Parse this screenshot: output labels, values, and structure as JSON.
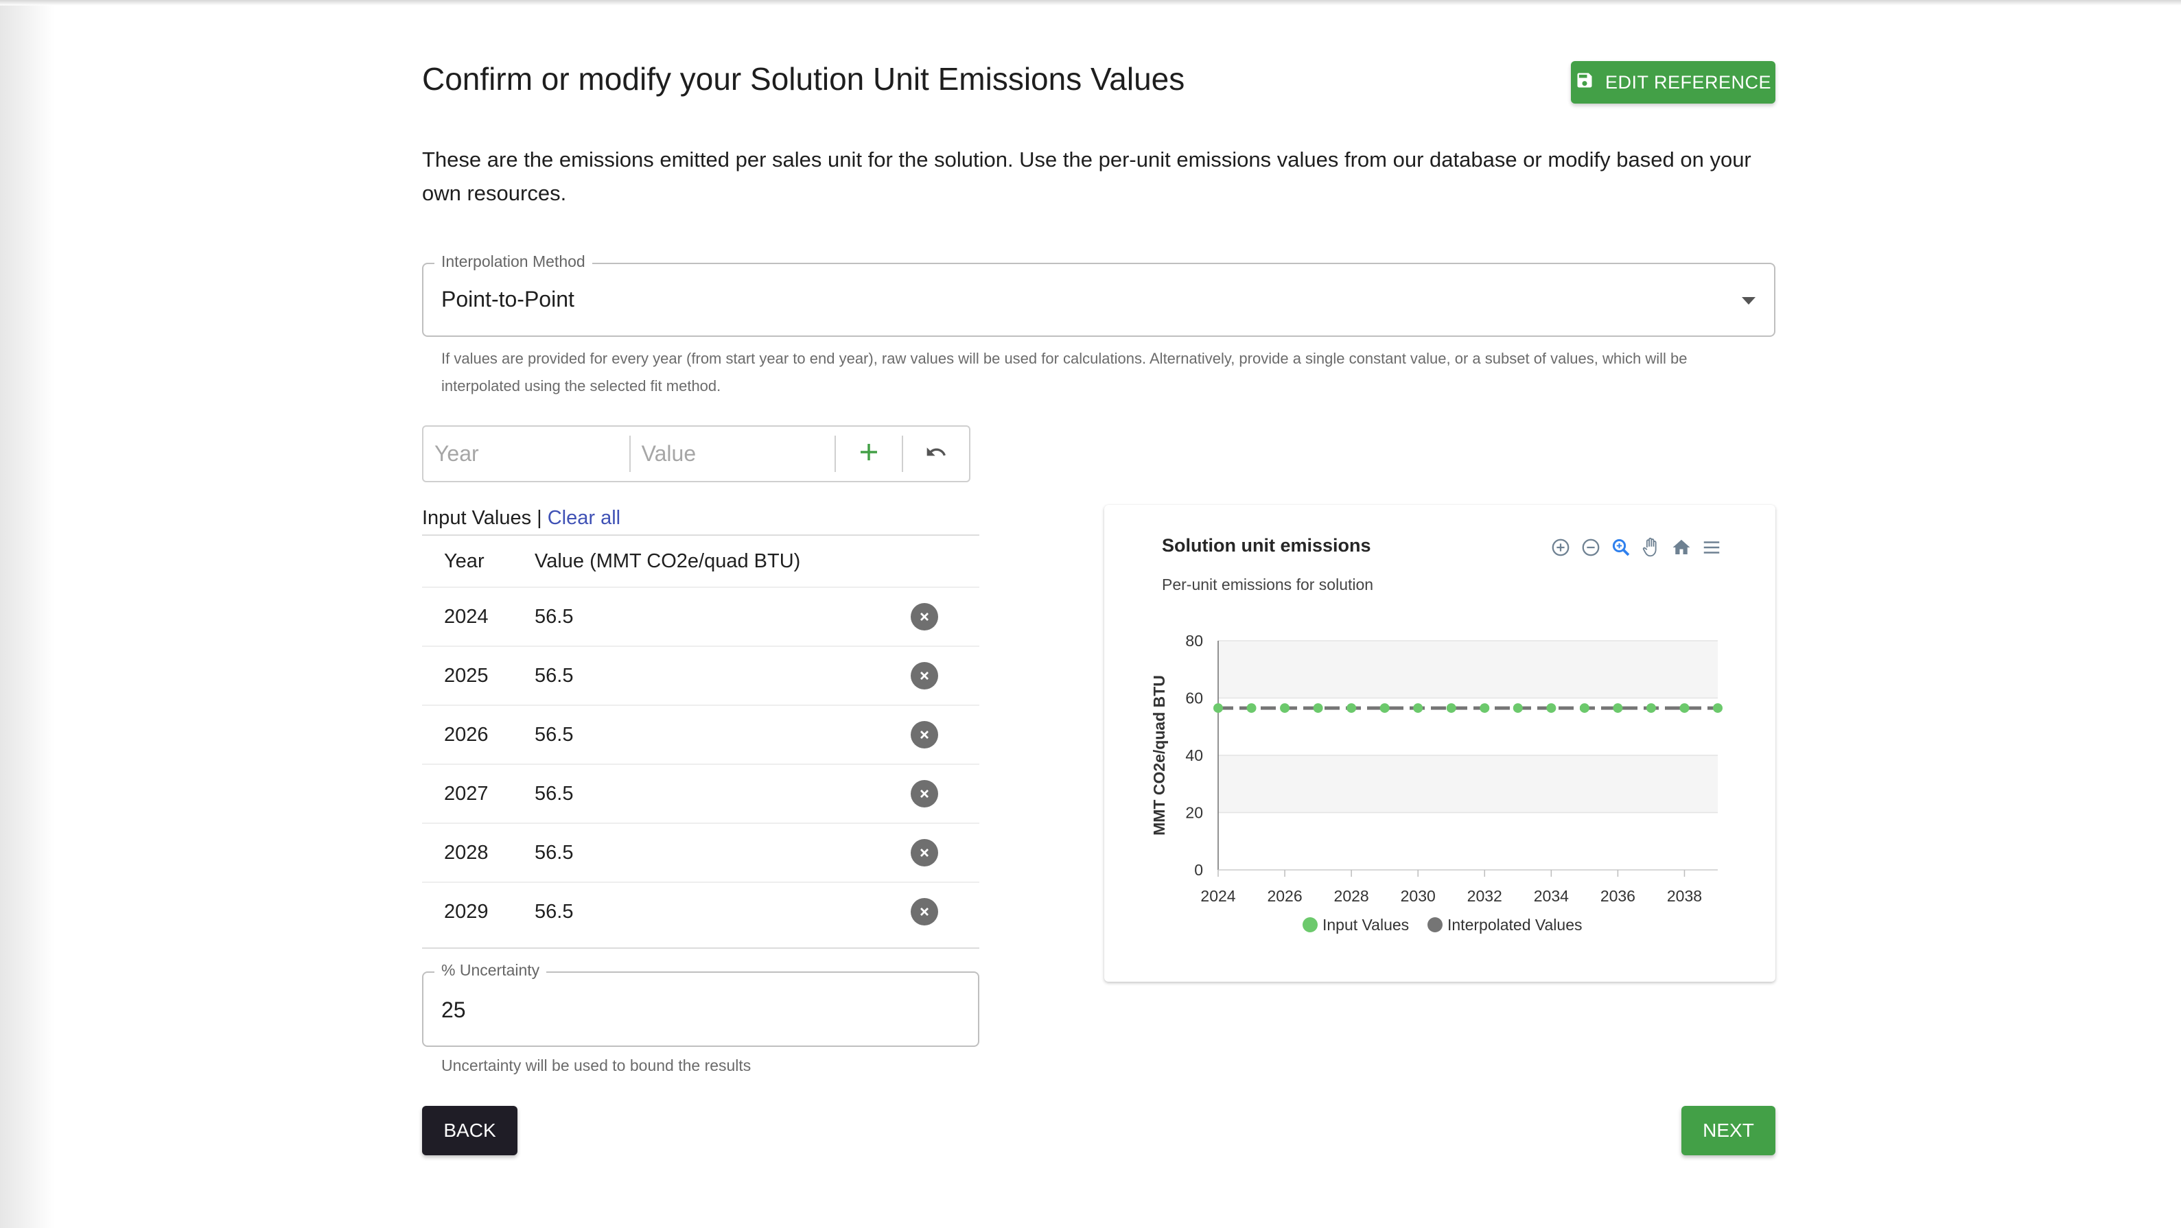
{
  "header": {
    "title": "Confirm or modify your Solution Unit Emissions Values",
    "edit_reference_label": "EDIT REFERENCE",
    "description": "These are the emissions emitted per sales unit for the solution. Use the per-unit emissions values from our database or modify based on your own resources."
  },
  "interpolation": {
    "label": "Interpolation Method",
    "value": "Point-to-Point",
    "helper": "If values are provided for every year (from start year to end year), raw values will be used for calculations. Alternatively, provide a single constant value, or a subset of values, which will be interpolated using the selected fit method."
  },
  "entry": {
    "year_placeholder": "Year",
    "value_placeholder": "Value"
  },
  "input_values": {
    "heading": "Input Values",
    "separator": " | ",
    "clear_all": "Clear all",
    "col_year": "Year",
    "col_value": "Value (MMT CO2e/quad BTU)",
    "rows": [
      {
        "year": "2024",
        "value": "56.5"
      },
      {
        "year": "2025",
        "value": "56.5"
      },
      {
        "year": "2026",
        "value": "56.5"
      },
      {
        "year": "2027",
        "value": "56.5"
      },
      {
        "year": "2028",
        "value": "56.5"
      },
      {
        "year": "2029",
        "value": "56.5"
      }
    ]
  },
  "uncertainty": {
    "label": "% Uncertainty",
    "value": "25",
    "helper": "Uncertainty will be used to bound the results"
  },
  "nav": {
    "back": "BACK",
    "next": "NEXT"
  },
  "colors": {
    "green": "#43a047",
    "dark": "#1f1d26",
    "link": "#3f51b5",
    "input_series": "#6cc96c",
    "interpolated_series": "#757575"
  },
  "toolbar_icons": [
    "zoom-in-icon",
    "zoom-out-icon",
    "zoom-selection-icon",
    "pan-hand-icon",
    "home-icon",
    "menu-icon"
  ],
  "chart_data": {
    "type": "line",
    "title": "Solution unit emissions",
    "subtitle": "Per-unit emissions for solution",
    "ylabel": "MMT CO2e/quad BTU",
    "xlabel": "",
    "ylim": [
      0,
      80
    ],
    "yticks": [
      0,
      20,
      40,
      60,
      80
    ],
    "xlim": [
      2024,
      2039
    ],
    "xticks": [
      2024,
      2026,
      2028,
      2030,
      2032,
      2034,
      2036,
      2038
    ],
    "grid": "horizontal bands",
    "legend_position": "bottom-center",
    "series": [
      {
        "name": "Input Values",
        "color": "#6cc96c",
        "style": "markers",
        "x": [
          2024,
          2025,
          2026,
          2027,
          2028,
          2029,
          2030,
          2031,
          2032,
          2033,
          2034,
          2035,
          2036,
          2037,
          2038,
          2039
        ],
        "y": [
          56.5,
          56.5,
          56.5,
          56.5,
          56.5,
          56.5,
          56.5,
          56.5,
          56.5,
          56.5,
          56.5,
          56.5,
          56.5,
          56.5,
          56.5,
          56.5
        ]
      },
      {
        "name": "Interpolated Values",
        "color": "#757575",
        "style": "dashed",
        "x": [
          2024,
          2039
        ],
        "y": [
          56.5,
          56.5
        ]
      }
    ]
  }
}
